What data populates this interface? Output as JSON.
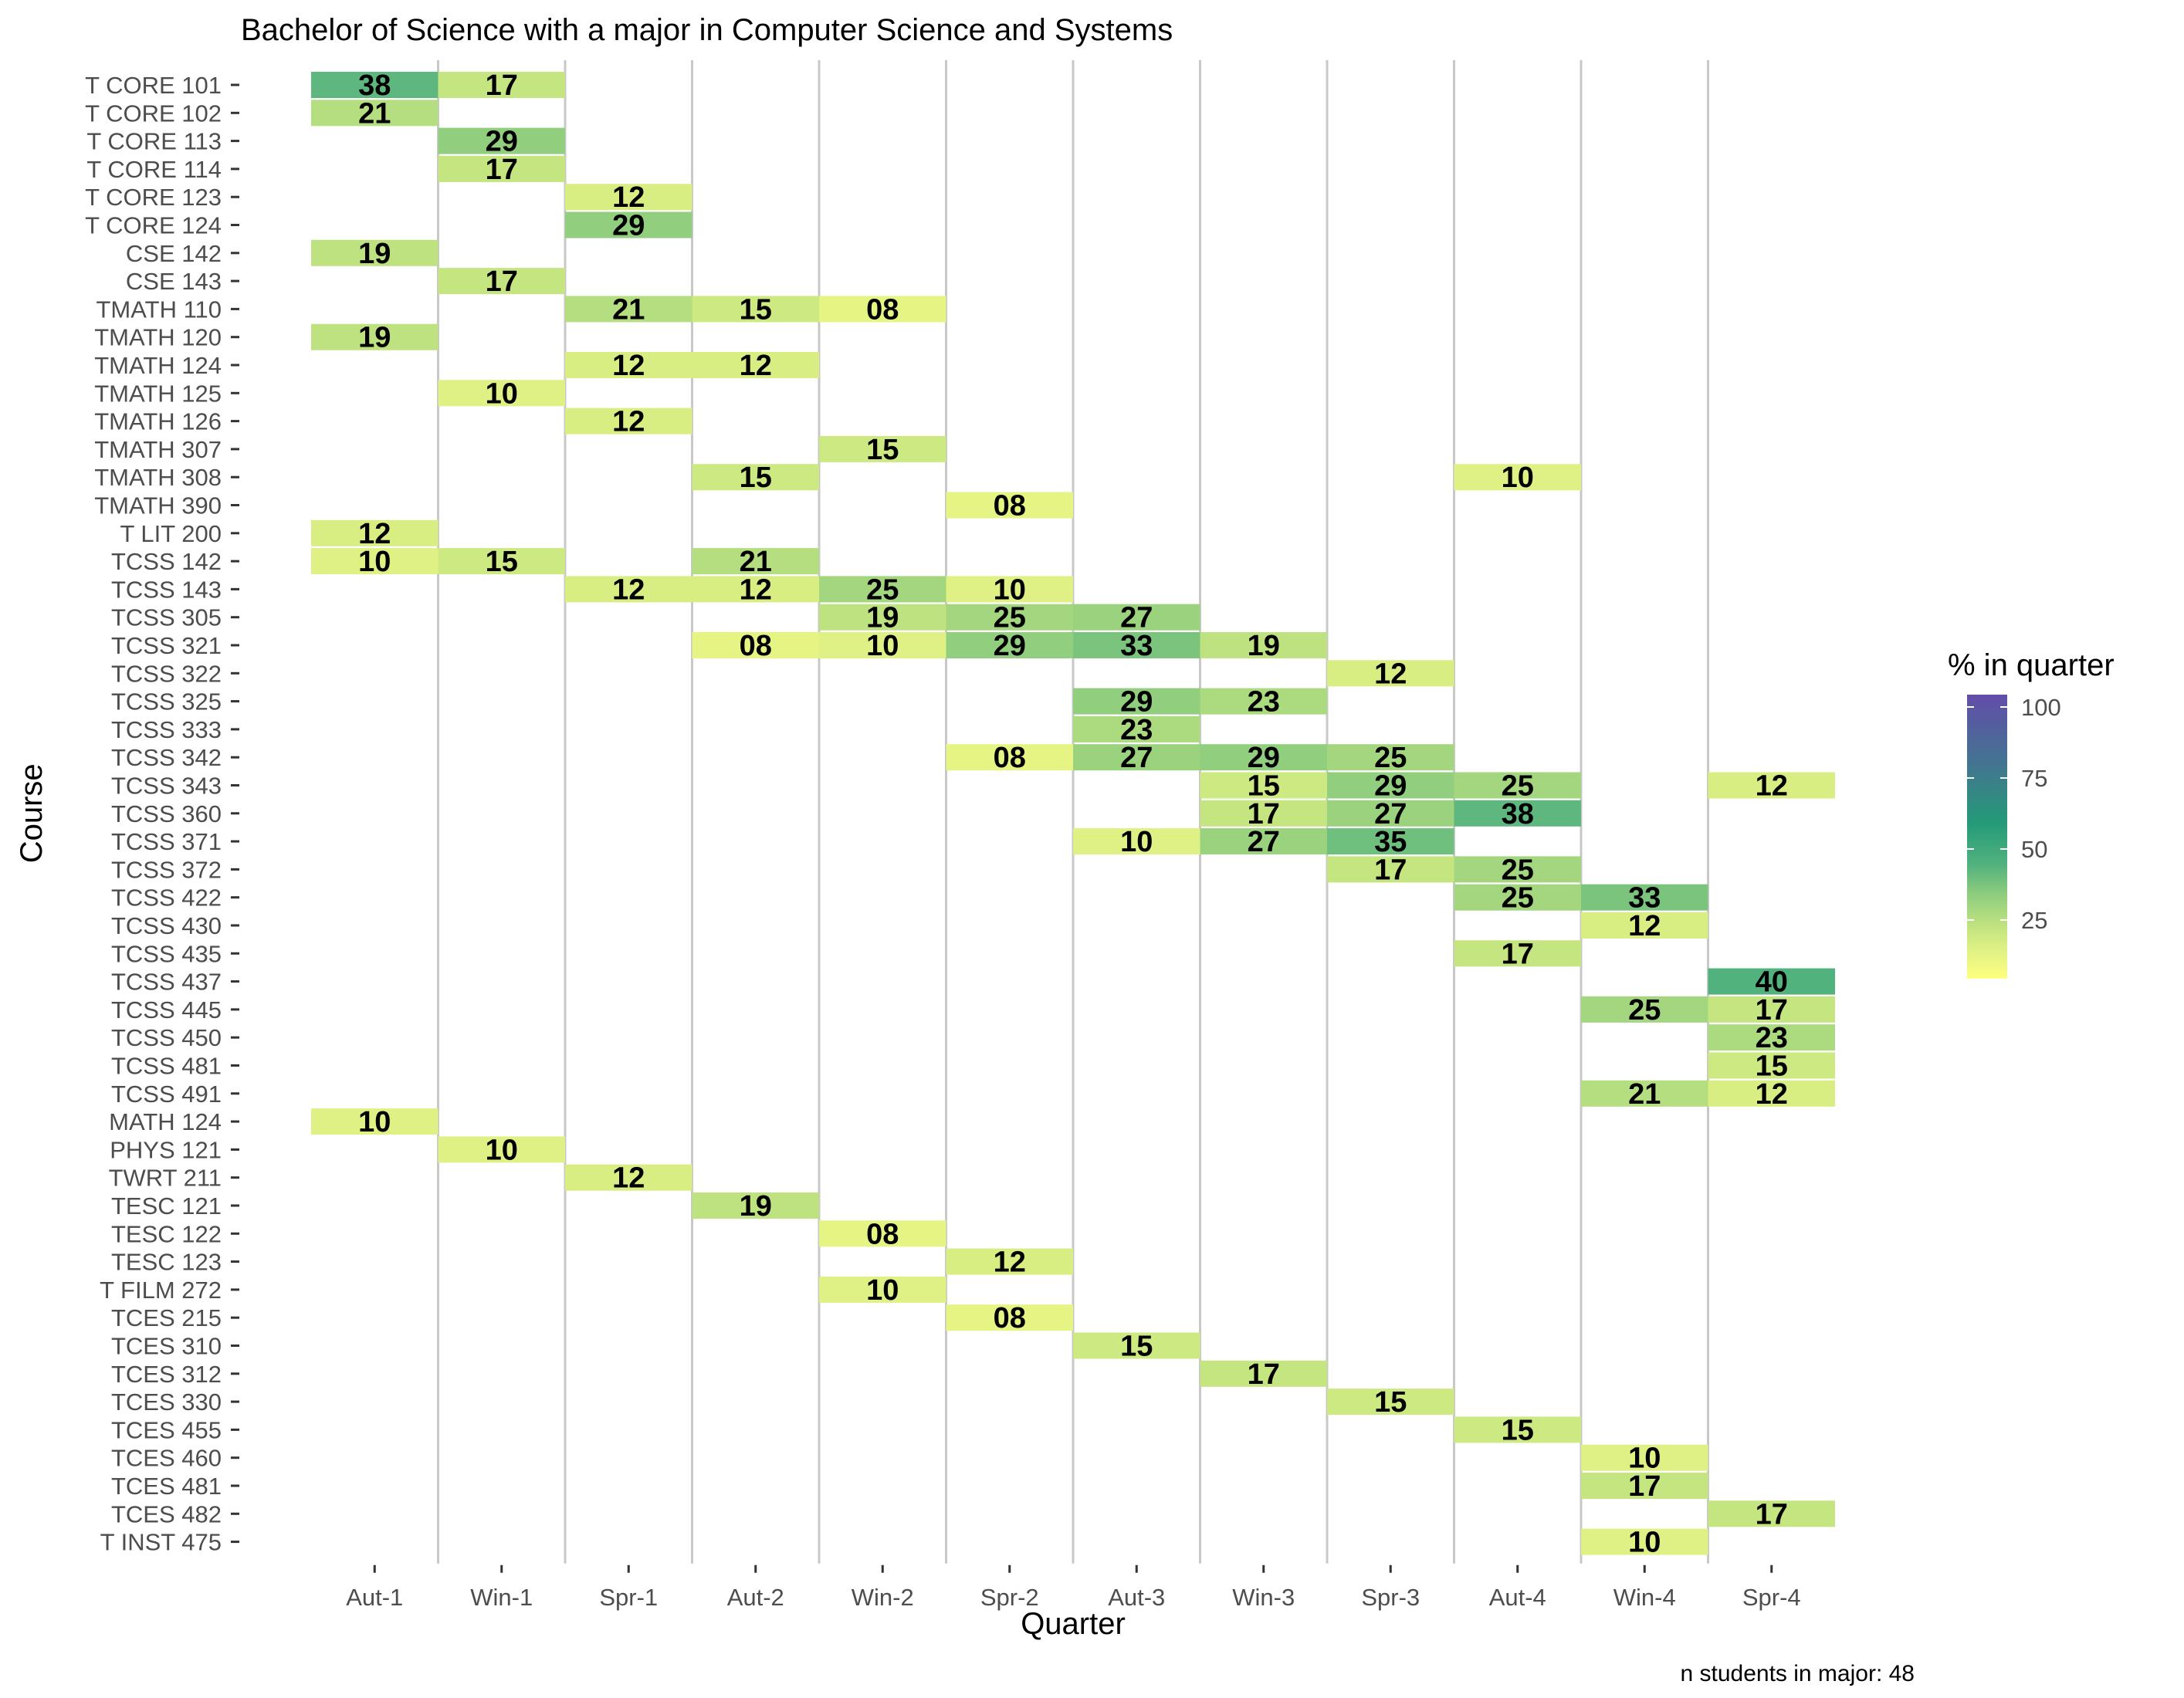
{
  "chart_data": {
    "type": "heatmap",
    "title": "Bachelor of Science with a major in Computer Science and Systems",
    "xlabel": "Quarter",
    "ylabel": "Course",
    "caption": "n students in major: 48",
    "x": [
      "Aut-1",
      "Win-1",
      "Spr-1",
      "Aut-2",
      "Win-2",
      "Spr-2",
      "Aut-3",
      "Win-3",
      "Spr-3",
      "Aut-4",
      "Win-4",
      "Spr-4"
    ],
    "y": [
      "T CORE 101",
      "T CORE 102",
      "T CORE 113",
      "T CORE 114",
      "T CORE 123",
      "T CORE 124",
      "CSE 142",
      "CSE 143",
      "TMATH 110",
      "TMATH 120",
      "TMATH 124",
      "TMATH 125",
      "TMATH 126",
      "TMATH 307",
      "TMATH 308",
      "TMATH 390",
      "T LIT 200",
      "TCSS 142",
      "TCSS 143",
      "TCSS 305",
      "TCSS 321",
      "TCSS 322",
      "TCSS 325",
      "TCSS 333",
      "TCSS 342",
      "TCSS 343",
      "TCSS 360",
      "TCSS 371",
      "TCSS 372",
      "TCSS 422",
      "TCSS 430",
      "TCSS 435",
      "TCSS 437",
      "TCSS 445",
      "TCSS 450",
      "TCSS 481",
      "TCSS 491",
      "MATH 124",
      "PHYS 121",
      "TWRT 211",
      "TESC 121",
      "TESC 122",
      "TESC 123",
      "T FILM 272",
      "TCES 215",
      "TCES 310",
      "TCES 312",
      "TCES 330",
      "TCES 455",
      "TCES 460",
      "TCES 481",
      "TCES 482",
      "T INST 475"
    ],
    "cells": [
      {
        "course": "T CORE 101",
        "quarter": "Aut-1",
        "value": 38,
        "label": "38"
      },
      {
        "course": "T CORE 101",
        "quarter": "Win-1",
        "value": 17,
        "label": "17"
      },
      {
        "course": "T CORE 102",
        "quarter": "Aut-1",
        "value": 21,
        "label": "21"
      },
      {
        "course": "T CORE 113",
        "quarter": "Win-1",
        "value": 29,
        "label": "29"
      },
      {
        "course": "T CORE 114",
        "quarter": "Win-1",
        "value": 17,
        "label": "17"
      },
      {
        "course": "T CORE 123",
        "quarter": "Spr-1",
        "value": 12,
        "label": "12"
      },
      {
        "course": "T CORE 124",
        "quarter": "Spr-1",
        "value": 29,
        "label": "29"
      },
      {
        "course": "CSE 142",
        "quarter": "Aut-1",
        "value": 19,
        "label": "19"
      },
      {
        "course": "CSE 143",
        "quarter": "Win-1",
        "value": 17,
        "label": "17"
      },
      {
        "course": "TMATH 110",
        "quarter": "Spr-1",
        "value": 21,
        "label": "21"
      },
      {
        "course": "TMATH 110",
        "quarter": "Aut-2",
        "value": 15,
        "label": "15"
      },
      {
        "course": "TMATH 110",
        "quarter": "Win-2",
        "value": 8,
        "label": "08"
      },
      {
        "course": "TMATH 120",
        "quarter": "Aut-1",
        "value": 19,
        "label": "19"
      },
      {
        "course": "TMATH 124",
        "quarter": "Spr-1",
        "value": 12,
        "label": "12"
      },
      {
        "course": "TMATH 124",
        "quarter": "Aut-2",
        "value": 12,
        "label": "12"
      },
      {
        "course": "TMATH 125",
        "quarter": "Win-1",
        "value": 10,
        "label": "10"
      },
      {
        "course": "TMATH 126",
        "quarter": "Spr-1",
        "value": 12,
        "label": "12"
      },
      {
        "course": "TMATH 307",
        "quarter": "Win-2",
        "value": 15,
        "label": "15"
      },
      {
        "course": "TMATH 308",
        "quarter": "Aut-2",
        "value": 15,
        "label": "15"
      },
      {
        "course": "TMATH 308",
        "quarter": "Aut-4",
        "value": 10,
        "label": "10"
      },
      {
        "course": "TMATH 390",
        "quarter": "Spr-2",
        "value": 8,
        "label": "08"
      },
      {
        "course": "T LIT 200",
        "quarter": "Aut-1",
        "value": 12,
        "label": "12"
      },
      {
        "course": "TCSS 142",
        "quarter": "Aut-1",
        "value": 10,
        "label": "10"
      },
      {
        "course": "TCSS 142",
        "quarter": "Win-1",
        "value": 15,
        "label": "15"
      },
      {
        "course": "TCSS 142",
        "quarter": "Aut-2",
        "value": 21,
        "label": "21"
      },
      {
        "course": "TCSS 143",
        "quarter": "Spr-1",
        "value": 12,
        "label": "12"
      },
      {
        "course": "TCSS 143",
        "quarter": "Aut-2",
        "value": 12,
        "label": "12"
      },
      {
        "course": "TCSS 143",
        "quarter": "Win-2",
        "value": 25,
        "label": "25"
      },
      {
        "course": "TCSS 143",
        "quarter": "Spr-2",
        "value": 10,
        "label": "10"
      },
      {
        "course": "TCSS 305",
        "quarter": "Win-2",
        "value": 19,
        "label": "19"
      },
      {
        "course": "TCSS 305",
        "quarter": "Spr-2",
        "value": 25,
        "label": "25"
      },
      {
        "course": "TCSS 305",
        "quarter": "Aut-3",
        "value": 27,
        "label": "27"
      },
      {
        "course": "TCSS 321",
        "quarter": "Aut-2",
        "value": 8,
        "label": "08"
      },
      {
        "course": "TCSS 321",
        "quarter": "Win-2",
        "value": 10,
        "label": "10"
      },
      {
        "course": "TCSS 321",
        "quarter": "Spr-2",
        "value": 29,
        "label": "29"
      },
      {
        "course": "TCSS 321",
        "quarter": "Aut-3",
        "value": 33,
        "label": "33"
      },
      {
        "course": "TCSS 321",
        "quarter": "Win-3",
        "value": 19,
        "label": "19"
      },
      {
        "course": "TCSS 322",
        "quarter": "Spr-3",
        "value": 12,
        "label": "12"
      },
      {
        "course": "TCSS 325",
        "quarter": "Aut-3",
        "value": 29,
        "label": "29"
      },
      {
        "course": "TCSS 325",
        "quarter": "Win-3",
        "value": 23,
        "label": "23"
      },
      {
        "course": "TCSS 333",
        "quarter": "Aut-3",
        "value": 23,
        "label": "23"
      },
      {
        "course": "TCSS 342",
        "quarter": "Spr-2",
        "value": 8,
        "label": "08"
      },
      {
        "course": "TCSS 342",
        "quarter": "Aut-3",
        "value": 27,
        "label": "27"
      },
      {
        "course": "TCSS 342",
        "quarter": "Win-3",
        "value": 29,
        "label": "29"
      },
      {
        "course": "TCSS 342",
        "quarter": "Spr-3",
        "value": 25,
        "label": "25"
      },
      {
        "course": "TCSS 343",
        "quarter": "Win-3",
        "value": 15,
        "label": "15"
      },
      {
        "course": "TCSS 343",
        "quarter": "Spr-3",
        "value": 29,
        "label": "29"
      },
      {
        "course": "TCSS 343",
        "quarter": "Aut-4",
        "value": 25,
        "label": "25"
      },
      {
        "course": "TCSS 343",
        "quarter": "Spr-4",
        "value": 12,
        "label": "12"
      },
      {
        "course": "TCSS 360",
        "quarter": "Win-3",
        "value": 17,
        "label": "17"
      },
      {
        "course": "TCSS 360",
        "quarter": "Spr-3",
        "value": 27,
        "label": "27"
      },
      {
        "course": "TCSS 360",
        "quarter": "Aut-4",
        "value": 38,
        "label": "38"
      },
      {
        "course": "TCSS 371",
        "quarter": "Aut-3",
        "value": 10,
        "label": "10"
      },
      {
        "course": "TCSS 371",
        "quarter": "Win-3",
        "value": 27,
        "label": "27"
      },
      {
        "course": "TCSS 371",
        "quarter": "Spr-3",
        "value": 35,
        "label": "35"
      },
      {
        "course": "TCSS 372",
        "quarter": "Spr-3",
        "value": 17,
        "label": "17"
      },
      {
        "course": "TCSS 372",
        "quarter": "Aut-4",
        "value": 25,
        "label": "25"
      },
      {
        "course": "TCSS 422",
        "quarter": "Aut-4",
        "value": 25,
        "label": "25"
      },
      {
        "course": "TCSS 422",
        "quarter": "Win-4",
        "value": 33,
        "label": "33"
      },
      {
        "course": "TCSS 430",
        "quarter": "Win-4",
        "value": 12,
        "label": "12"
      },
      {
        "course": "TCSS 435",
        "quarter": "Aut-4",
        "value": 17,
        "label": "17"
      },
      {
        "course": "TCSS 437",
        "quarter": "Spr-4",
        "value": 40,
        "label": "40"
      },
      {
        "course": "TCSS 445",
        "quarter": "Win-4",
        "value": 25,
        "label": "25"
      },
      {
        "course": "TCSS 445",
        "quarter": "Spr-4",
        "value": 17,
        "label": "17"
      },
      {
        "course": "TCSS 450",
        "quarter": "Spr-4",
        "value": 23,
        "label": "23"
      },
      {
        "course": "TCSS 481",
        "quarter": "Spr-4",
        "value": 15,
        "label": "15"
      },
      {
        "course": "TCSS 491",
        "quarter": "Win-4",
        "value": 21,
        "label": "21"
      },
      {
        "course": "TCSS 491",
        "quarter": "Spr-4",
        "value": 12,
        "label": "12"
      },
      {
        "course": "MATH 124",
        "quarter": "Aut-1",
        "value": 10,
        "label": "10"
      },
      {
        "course": "PHYS 121",
        "quarter": "Win-1",
        "value": 10,
        "label": "10"
      },
      {
        "course": "TWRT 211",
        "quarter": "Spr-1",
        "value": 12,
        "label": "12"
      },
      {
        "course": "TESC 121",
        "quarter": "Aut-2",
        "value": 19,
        "label": "19"
      },
      {
        "course": "TESC 122",
        "quarter": "Win-2",
        "value": 8,
        "label": "08"
      },
      {
        "course": "TESC 123",
        "quarter": "Spr-2",
        "value": 12,
        "label": "12"
      },
      {
        "course": "T FILM 272",
        "quarter": "Win-2",
        "value": 10,
        "label": "10"
      },
      {
        "course": "TCES 215",
        "quarter": "Spr-2",
        "value": 8,
        "label": "08"
      },
      {
        "course": "TCES 310",
        "quarter": "Aut-3",
        "value": 15,
        "label": "15"
      },
      {
        "course": "TCES 312",
        "quarter": "Win-3",
        "value": 17,
        "label": "17"
      },
      {
        "course": "TCES 330",
        "quarter": "Spr-3",
        "value": 15,
        "label": "15"
      },
      {
        "course": "TCES 455",
        "quarter": "Aut-4",
        "value": 15,
        "label": "15"
      },
      {
        "course": "TCES 460",
        "quarter": "Win-4",
        "value": 10,
        "label": "10"
      },
      {
        "course": "TCES 481",
        "quarter": "Win-4",
        "value": 17,
        "label": "17"
      },
      {
        "course": "TCES 482",
        "quarter": "Spr-4",
        "value": 17,
        "label": "17"
      },
      {
        "course": "T INST 475",
        "quarter": "Win-4",
        "value": 10,
        "label": "10"
      }
    ],
    "legend": {
      "title": "% in quarter",
      "position": "right",
      "ticks": [
        100,
        75,
        50,
        25
      ],
      "range": [
        0,
        100
      ],
      "colors": [
        "#FFFF80",
        "#D8EF84",
        "#9ED77F",
        "#5CB889",
        "#1F9E79",
        "#3E6F88",
        "#5A4BA4"
      ]
    },
    "grid": {
      "vertical_separators": true,
      "separator_color": "#c8c8c8"
    }
  }
}
